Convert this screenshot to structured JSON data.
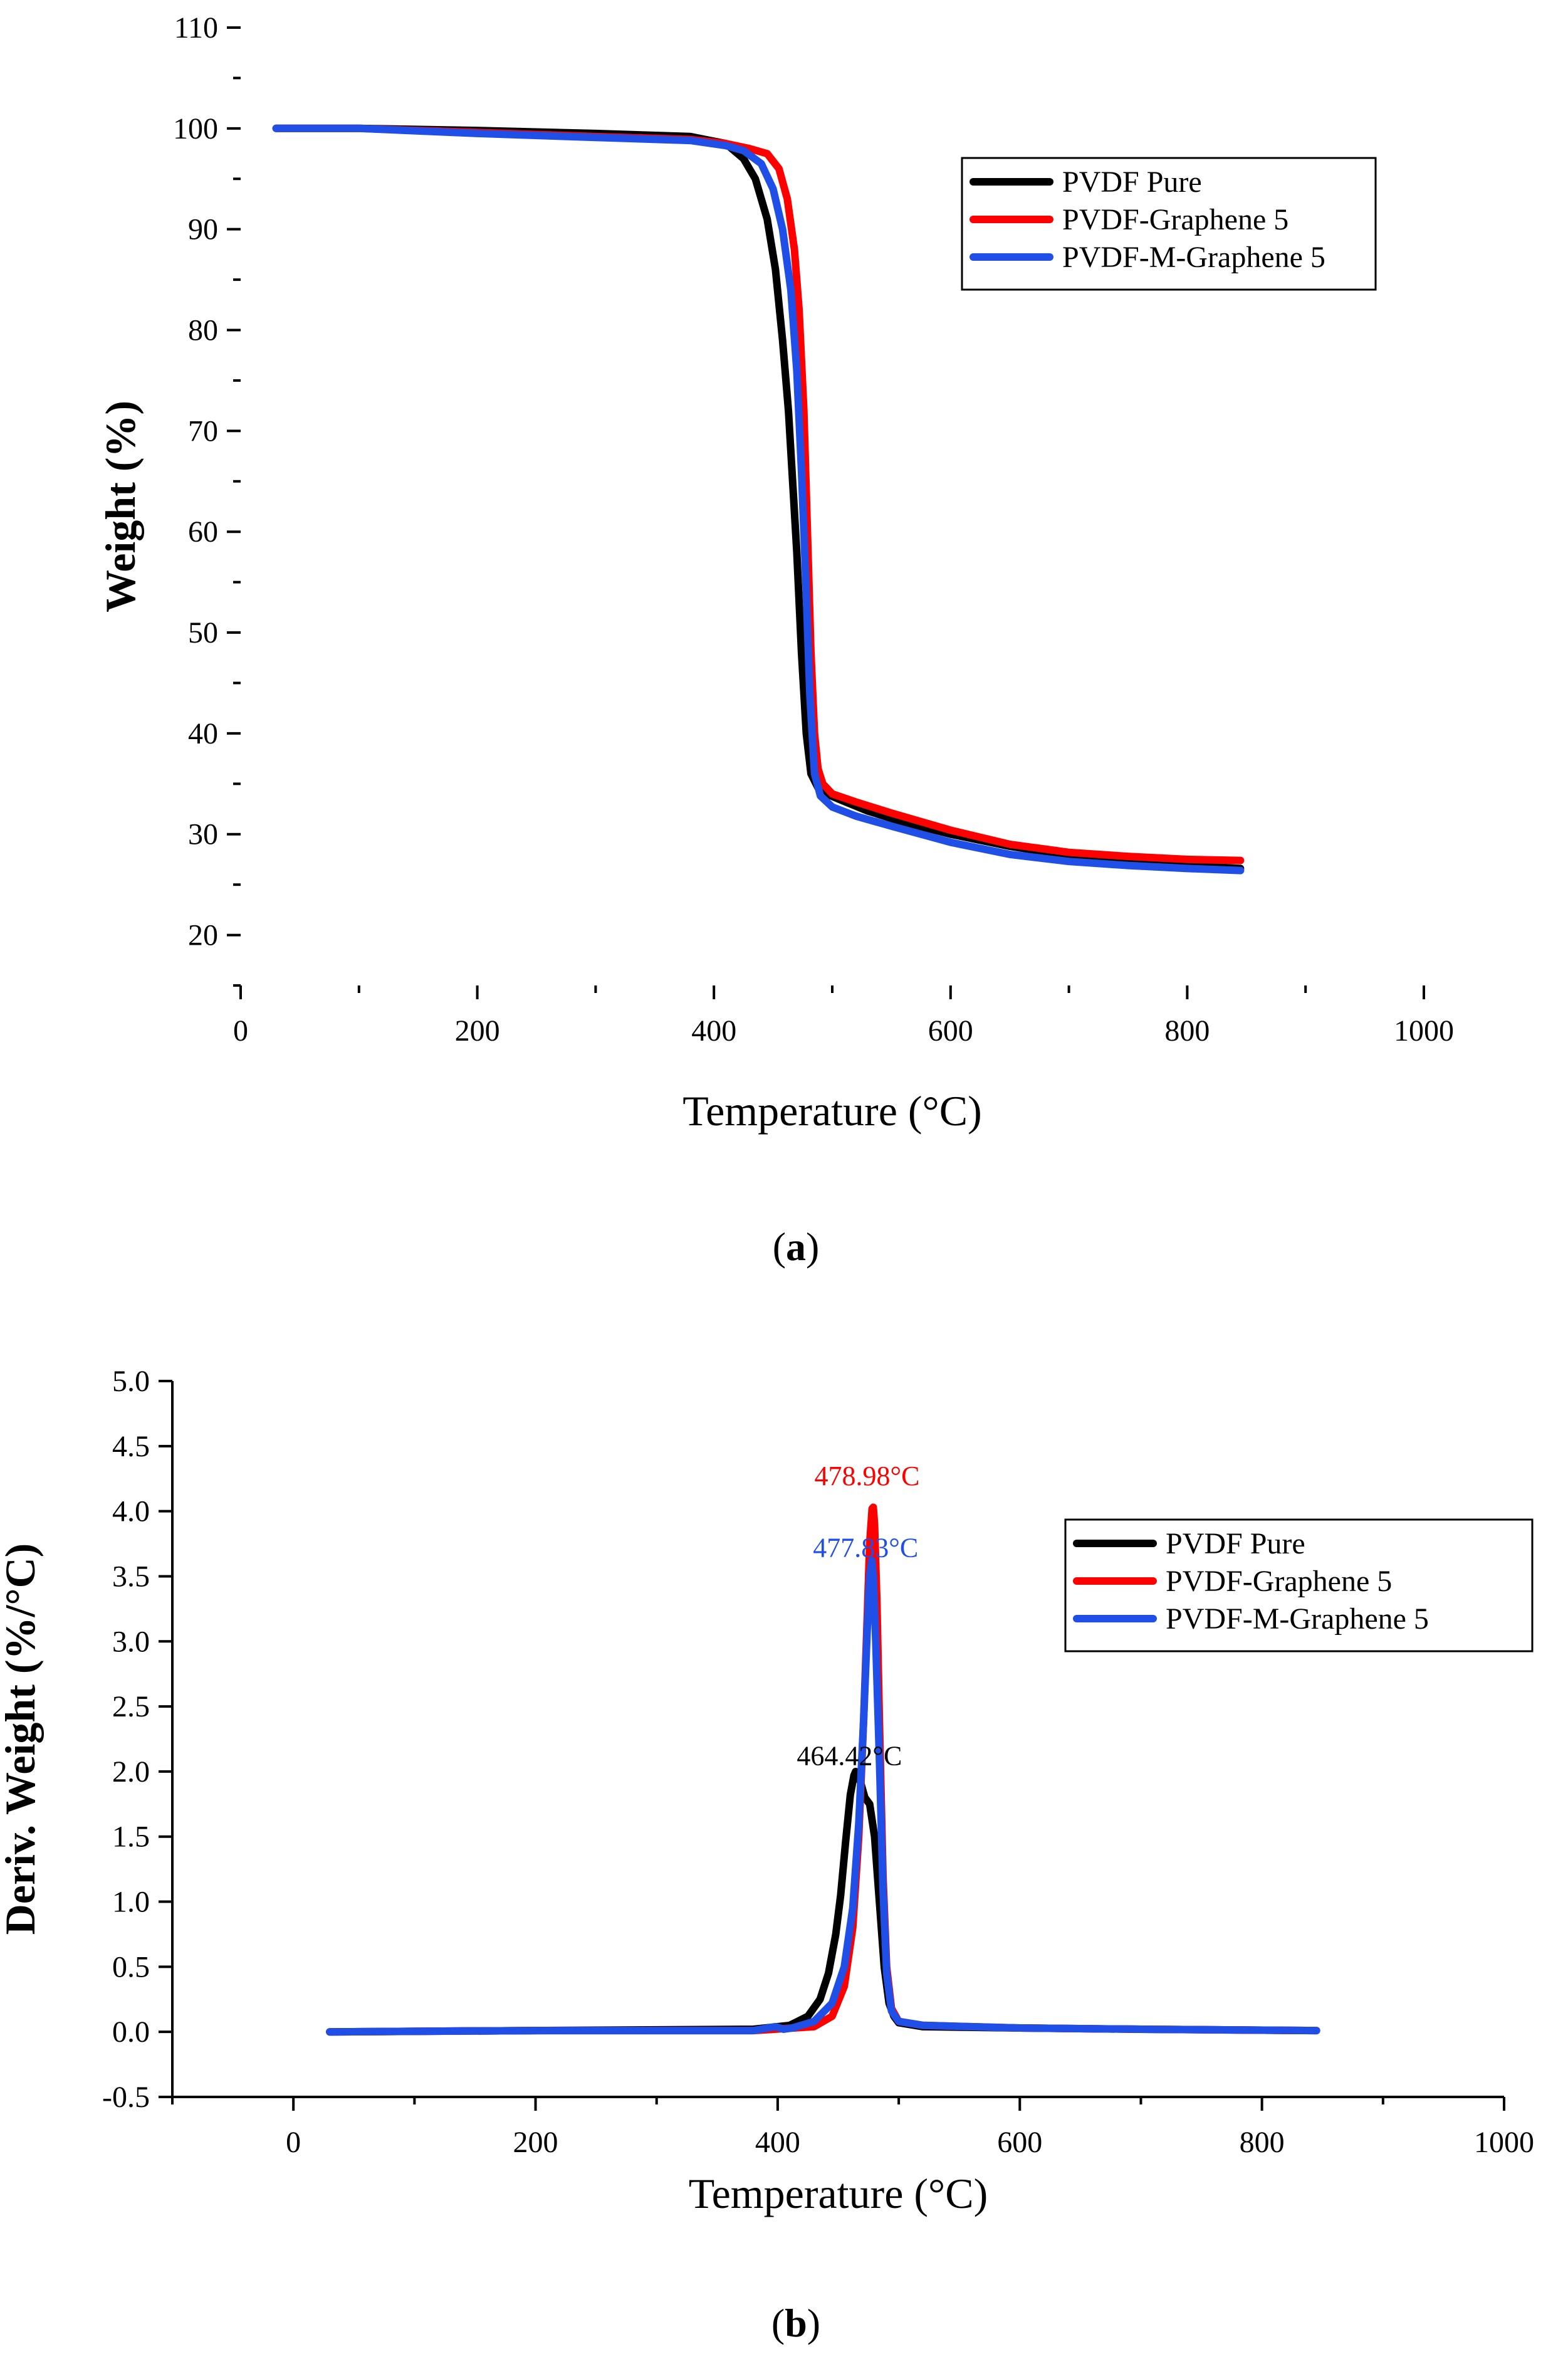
{
  "chart_data": [
    {
      "type": "line",
      "panel_label": "(a)",
      "panel_letter": "a",
      "title": "",
      "xlabel": "Temperature (°C)",
      "ylabel": "Weight (%)",
      "xlim": [
        0,
        1000
      ],
      "ylim": [
        15,
        110
      ],
      "xticks": [
        0,
        200,
        400,
        600,
        800,
        1000
      ],
      "yticks": [
        20,
        30,
        40,
        50,
        60,
        70,
        80,
        90,
        100,
        110
      ],
      "legend_position": "top-right",
      "series": [
        {
          "name": "PVDF Pure",
          "color": "#000000",
          "x": [
            30,
            100,
            200,
            300,
            380,
            410,
            425,
            435,
            445,
            452,
            458,
            463,
            466,
            470,
            474,
            478,
            482,
            488,
            495,
            505,
            530,
            560,
            600,
            650,
            700,
            750,
            800,
            845
          ],
          "y": [
            100,
            100,
            99.8,
            99.5,
            99.2,
            98.5,
            97,
            95,
            91,
            86,
            79,
            72,
            66,
            58,
            48,
            40,
            36,
            34.6,
            34,
            33.5,
            32.3,
            31.2,
            30,
            28.8,
            27.9,
            27.3,
            26.9,
            26.6
          ]
        },
        {
          "name": "PVDF-Graphene 5",
          "color": "#ff0000",
          "x": [
            30,
            100,
            200,
            300,
            380,
            410,
            430,
            445,
            455,
            462,
            468,
            472,
            476,
            479,
            482,
            485,
            488,
            492,
            500,
            520,
            550,
            600,
            650,
            700,
            750,
            800,
            845
          ],
          "y": [
            100,
            100,
            99.6,
            99.2,
            98.9,
            98.5,
            98,
            97.5,
            96,
            93,
            88,
            82,
            72,
            60,
            48,
            40,
            36.5,
            35,
            34,
            33.2,
            32.1,
            30.4,
            29,
            28.2,
            27.8,
            27.5,
            27.4
          ]
        },
        {
          "name": "PVDF-M-Graphene 5",
          "color": "#1f4fe6",
          "x": [
            30,
            100,
            200,
            300,
            380,
            410,
            425,
            440,
            450,
            458,
            465,
            470,
            474,
            478,
            481,
            485,
            490,
            500,
            520,
            550,
            600,
            650,
            700,
            750,
            800,
            845
          ],
          "y": [
            100,
            100,
            99.5,
            99.1,
            98.8,
            98.3,
            97.8,
            96.5,
            94,
            90,
            84,
            76,
            66,
            54,
            44,
            36,
            33.8,
            32.7,
            31.8,
            30.8,
            29.2,
            28,
            27.3,
            26.9,
            26.6,
            26.4
          ]
        }
      ]
    },
    {
      "type": "line",
      "panel_label": "(b)",
      "panel_letter": "b",
      "title": "",
      "xlabel": "Temperature (°C)",
      "ylabel": "Deriv. Weight (%/°C)",
      "xlim": [
        -100,
        1000
      ],
      "ylim": [
        -0.5,
        5.0
      ],
      "xticks": [
        0,
        200,
        400,
        600,
        800,
        1000
      ],
      "yticks": [
        -0.5,
        0.0,
        0.5,
        1.0,
        1.5,
        2.0,
        2.5,
        3.0,
        3.5,
        4.0,
        4.5,
        5.0
      ],
      "ytick_labels": [
        "-0.5",
        "0.0",
        "0.5",
        "1.0",
        "1.5",
        "2.0",
        "2.5",
        "3.0",
        "3.5",
        "4.0",
        "4.5",
        "5.0"
      ],
      "legend_position": "top-right",
      "annotations": [
        {
          "text": "478.98°C",
          "x": 478.98,
          "y": 4.2,
          "color": "#ff0000"
        },
        {
          "text": "477.83°C",
          "x": 477.83,
          "y": 3.65,
          "color": "#1f4fe6"
        },
        {
          "text": "464.42°C",
          "x": 464.42,
          "y": 2.05,
          "color": "#000000"
        }
      ],
      "series": [
        {
          "name": "PVDF Pure",
          "color": "#000000",
          "x": [
            30,
            200,
            380,
            410,
            425,
            435,
            442,
            448,
            452,
            456,
            460,
            463,
            464.4,
            466,
            469,
            472,
            476,
            480,
            484,
            488,
            492,
            496,
            500,
            520,
            600,
            700,
            845
          ],
          "y": [
            0,
            0.01,
            0.02,
            0.05,
            0.12,
            0.25,
            0.45,
            0.75,
            1.05,
            1.45,
            1.82,
            1.97,
            2.0,
            1.99,
            1.9,
            1.8,
            1.75,
            1.5,
            1.0,
            0.5,
            0.22,
            0.12,
            0.07,
            0.04,
            0.03,
            0.02,
            0.01
          ]
        },
        {
          "name": "PVDF-Graphene 5",
          "color": "#ff0000",
          "x": [
            30,
            200,
            380,
            430,
            445,
            455,
            462,
            467,
            471,
            474,
            476,
            478,
            479,
            480,
            482,
            484,
            487,
            490,
            494,
            500,
            520,
            600,
            700,
            845
          ],
          "y": [
            0,
            0.01,
            0.01,
            0.04,
            0.12,
            0.35,
            0.8,
            1.5,
            2.4,
            3.2,
            3.75,
            4.02,
            4.03,
            3.9,
            3.3,
            2.4,
            1.2,
            0.5,
            0.18,
            0.08,
            0.05,
            0.03,
            0.02,
            0.01
          ]
        },
        {
          "name": "PVDF-M-Graphene 5",
          "color": "#1f4fe6",
          "x": [
            30,
            200,
            380,
            398,
            405,
            412,
            430,
            445,
            455,
            462,
            467,
            471,
            474,
            476,
            477.8,
            479,
            481,
            484,
            487,
            490,
            494,
            500,
            520,
            600,
            700,
            845
          ],
          "y": [
            0,
            0.01,
            0.01,
            0.04,
            0.02,
            0.03,
            0.08,
            0.22,
            0.5,
            0.95,
            1.6,
            2.4,
            3.1,
            3.5,
            3.62,
            3.5,
            3.0,
            2.1,
            1.1,
            0.45,
            0.16,
            0.08,
            0.05,
            0.03,
            0.02,
            0.01
          ]
        }
      ]
    }
  ]
}
